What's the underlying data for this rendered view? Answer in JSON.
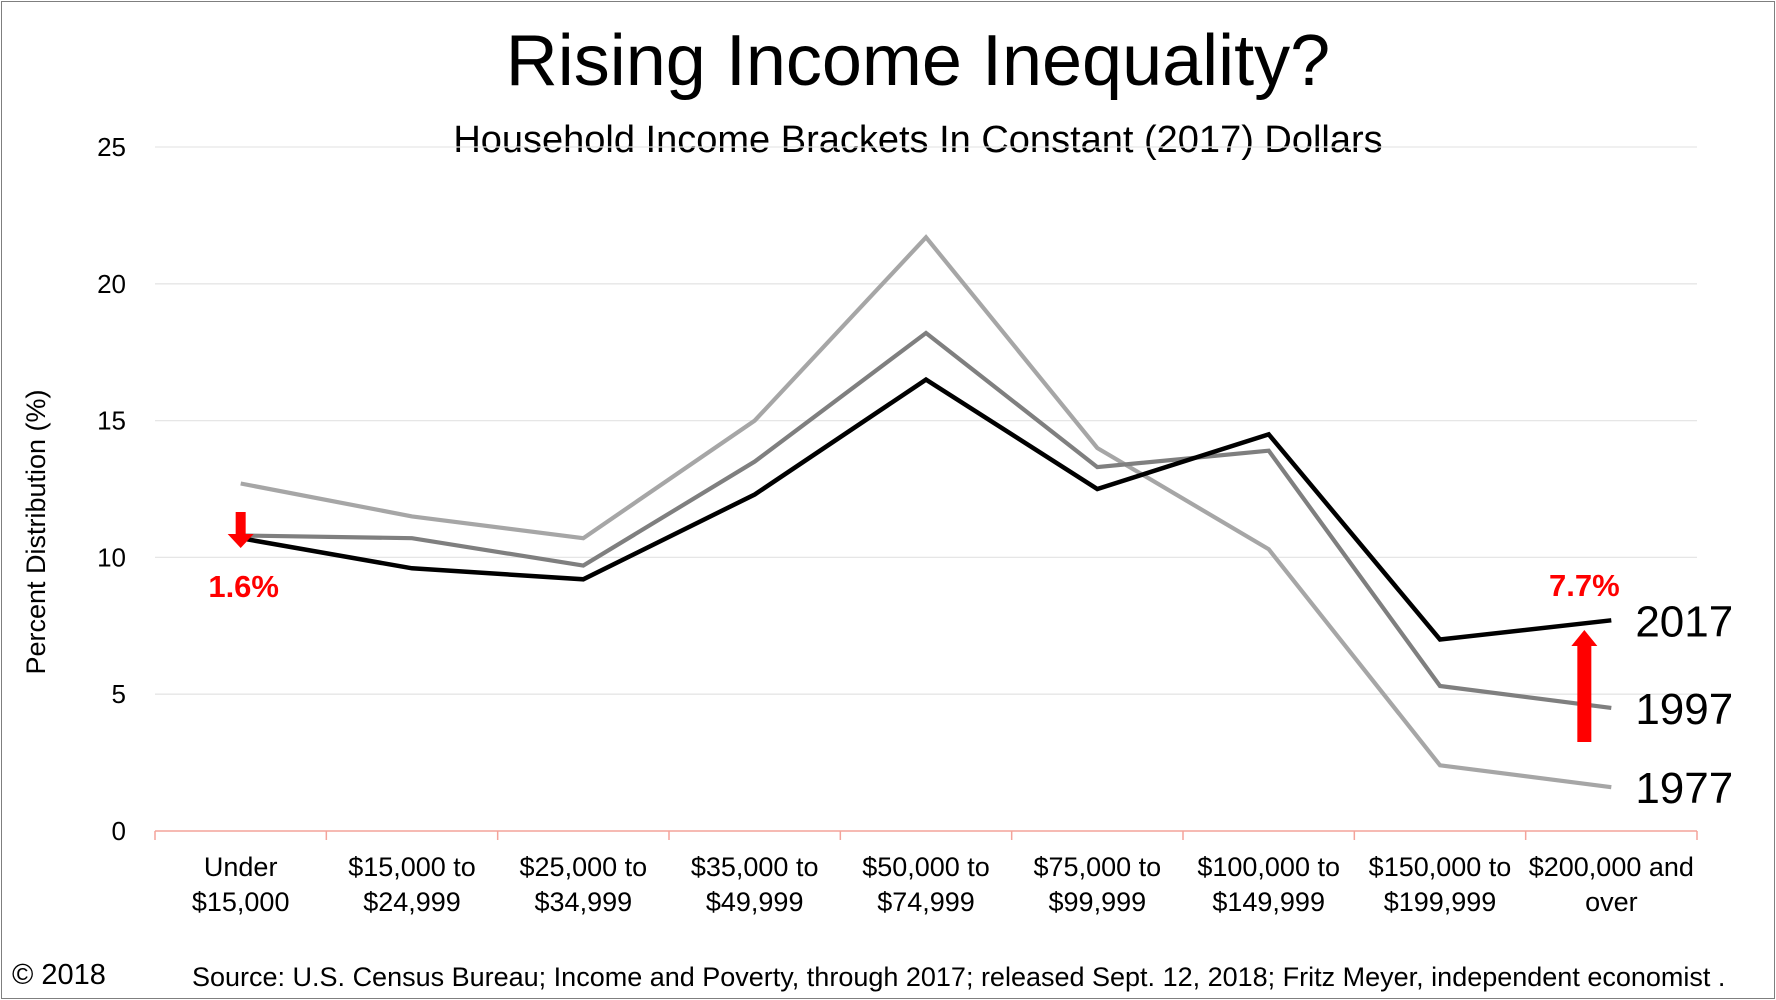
{
  "chart_data": {
    "type": "line",
    "title": "Rising Income Inequality?",
    "subtitle": "Household Income Brackets In Constant (2017) Dollars",
    "ylabel": "Percent Distribution (%)",
    "xlabel": "",
    "ylim": [
      0,
      25
    ],
    "yticks": [
      0,
      5,
      10,
      15,
      20,
      25
    ],
    "grid": true,
    "categories": [
      [
        "Under",
        "$15,000"
      ],
      [
        "$15,000 to",
        "$24,999"
      ],
      [
        "$25,000 to",
        "$34,999"
      ],
      [
        "$35,000 to",
        "$49,999"
      ],
      [
        "$50,000 to",
        "$74,999"
      ],
      [
        "$75,000 to",
        "$99,999"
      ],
      [
        "$100,000 to",
        "$149,999"
      ],
      [
        "$150,000 to",
        "$199,999"
      ],
      [
        "$200,000 and",
        "over"
      ]
    ],
    "series": [
      {
        "name": "1977",
        "color": "#a6a6a6",
        "values": [
          12.7,
          11.5,
          10.7,
          15.0,
          21.7,
          14.0,
          10.3,
          2.4,
          1.6
        ]
      },
      {
        "name": "1997",
        "color": "#7f7f7f",
        "values": [
          10.8,
          10.7,
          9.7,
          13.5,
          18.2,
          13.3,
          13.9,
          5.3,
          4.5
        ]
      },
      {
        "name": "2017",
        "color": "#000000",
        "values": [
          10.7,
          9.6,
          9.2,
          12.3,
          16.5,
          12.5,
          14.5,
          7.0,
          7.7
        ]
      }
    ],
    "annotations": [
      {
        "text": "1.6%",
        "color": "#ff0000",
        "arrow": "down",
        "category_index": 0
      },
      {
        "text": "7.7%",
        "color": "#ff0000",
        "arrow": "up",
        "category_index": 8
      }
    ]
  },
  "footer": {
    "copyright": "© 2018",
    "source": "Source: U.S. Census Bureau; Income and Poverty, through 2017; released Sept. 12, 2018; Fritz Meyer, independent economist ."
  }
}
